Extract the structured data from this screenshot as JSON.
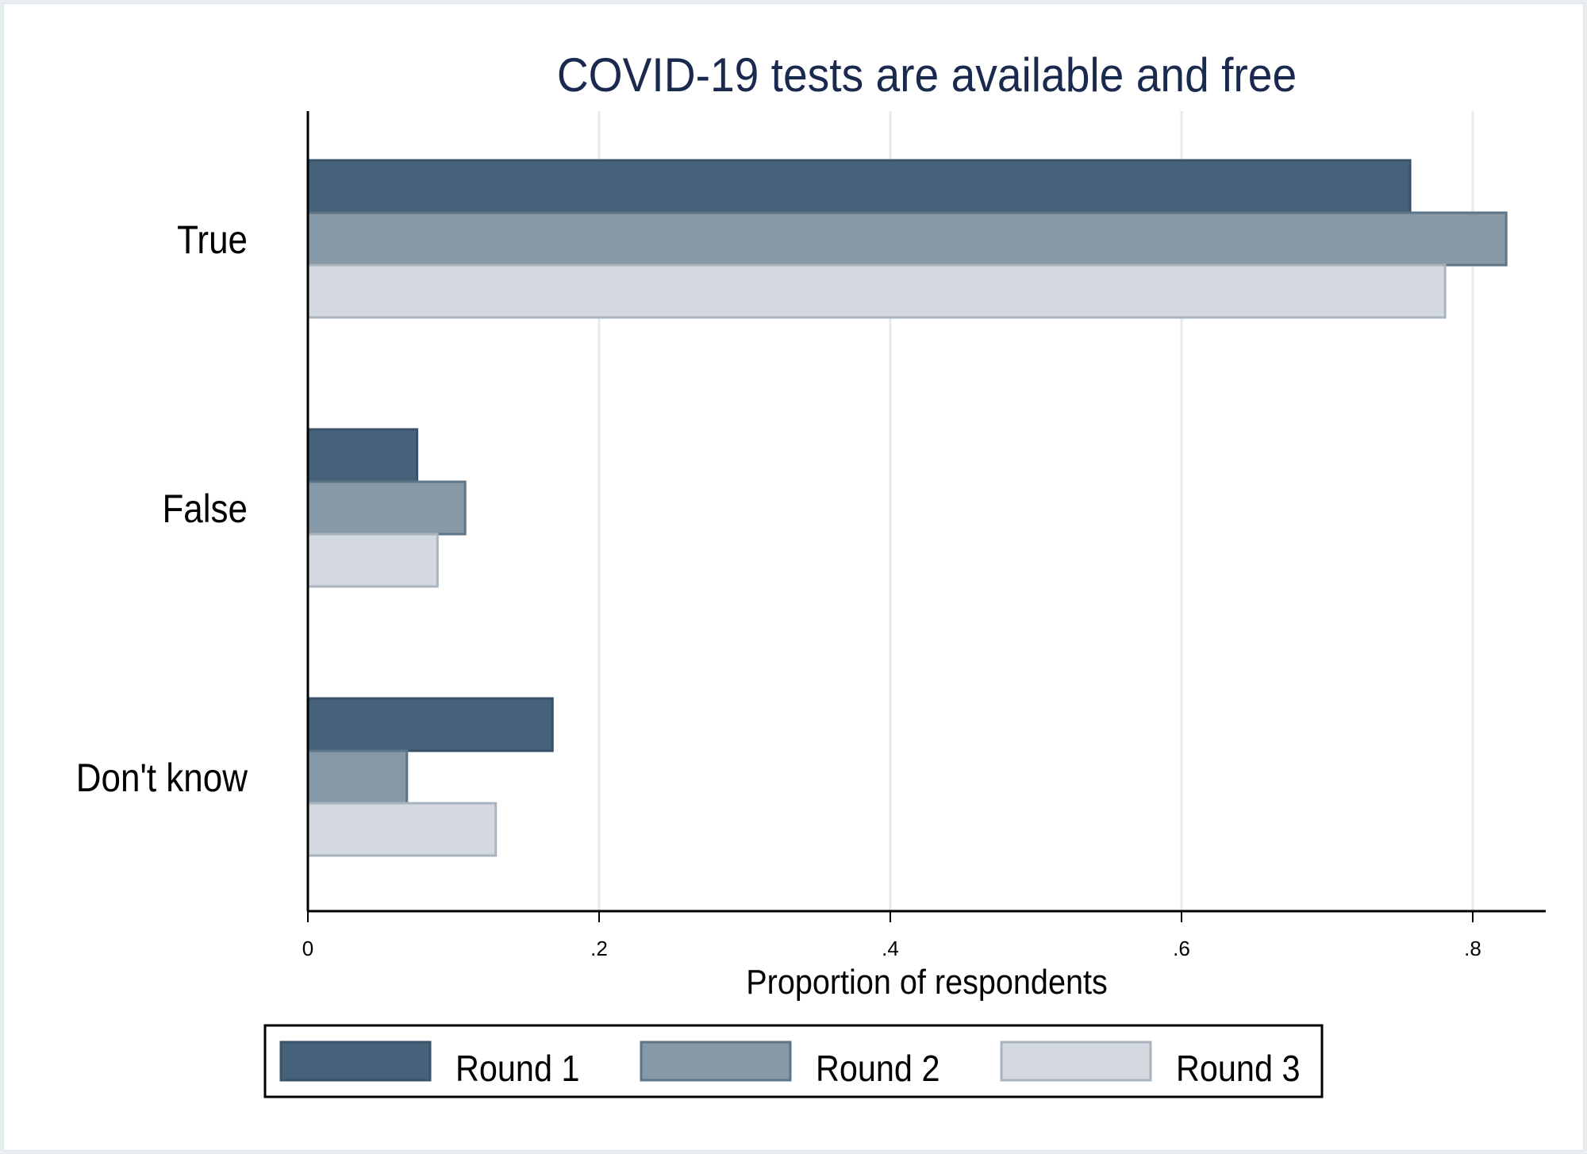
{
  "chart_data": {
    "type": "bar",
    "orientation": "horizontal",
    "title": "COVID-19 tests are available and free",
    "xlabel": "Proportion of respondents",
    "ylabel": "",
    "xlim": [
      0,
      0.85
    ],
    "grid": true,
    "legend_position": "bottom",
    "categories": [
      "True",
      "False",
      "Don't know"
    ],
    "x_ticks": [
      {
        "value": 0,
        "label": "0"
      },
      {
        "value": 0.2,
        "label": ".2"
      },
      {
        "value": 0.4,
        "label": ".4"
      },
      {
        "value": 0.6,
        "label": ".6"
      },
      {
        "value": 0.8,
        "label": ".8"
      }
    ],
    "series": [
      {
        "name": "Round 1",
        "values": [
          0.757,
          0.075,
          0.168
        ],
        "color": "#46617a",
        "stroke": "#3a5268"
      },
      {
        "name": "Round 2",
        "values": [
          0.823,
          0.108,
          0.068
        ],
        "color": "#8799a7",
        "stroke": "#5e7487"
      },
      {
        "name": "Round 3",
        "values": [
          0.781,
          0.089,
          0.129
        ],
        "color": "#d3d9df",
        "stroke": "#a9b4bf"
      }
    ]
  },
  "colors": {
    "title": "#1a2a4e",
    "axis": "#000000",
    "grid": "#e6eaed",
    "text": "#000000"
  }
}
